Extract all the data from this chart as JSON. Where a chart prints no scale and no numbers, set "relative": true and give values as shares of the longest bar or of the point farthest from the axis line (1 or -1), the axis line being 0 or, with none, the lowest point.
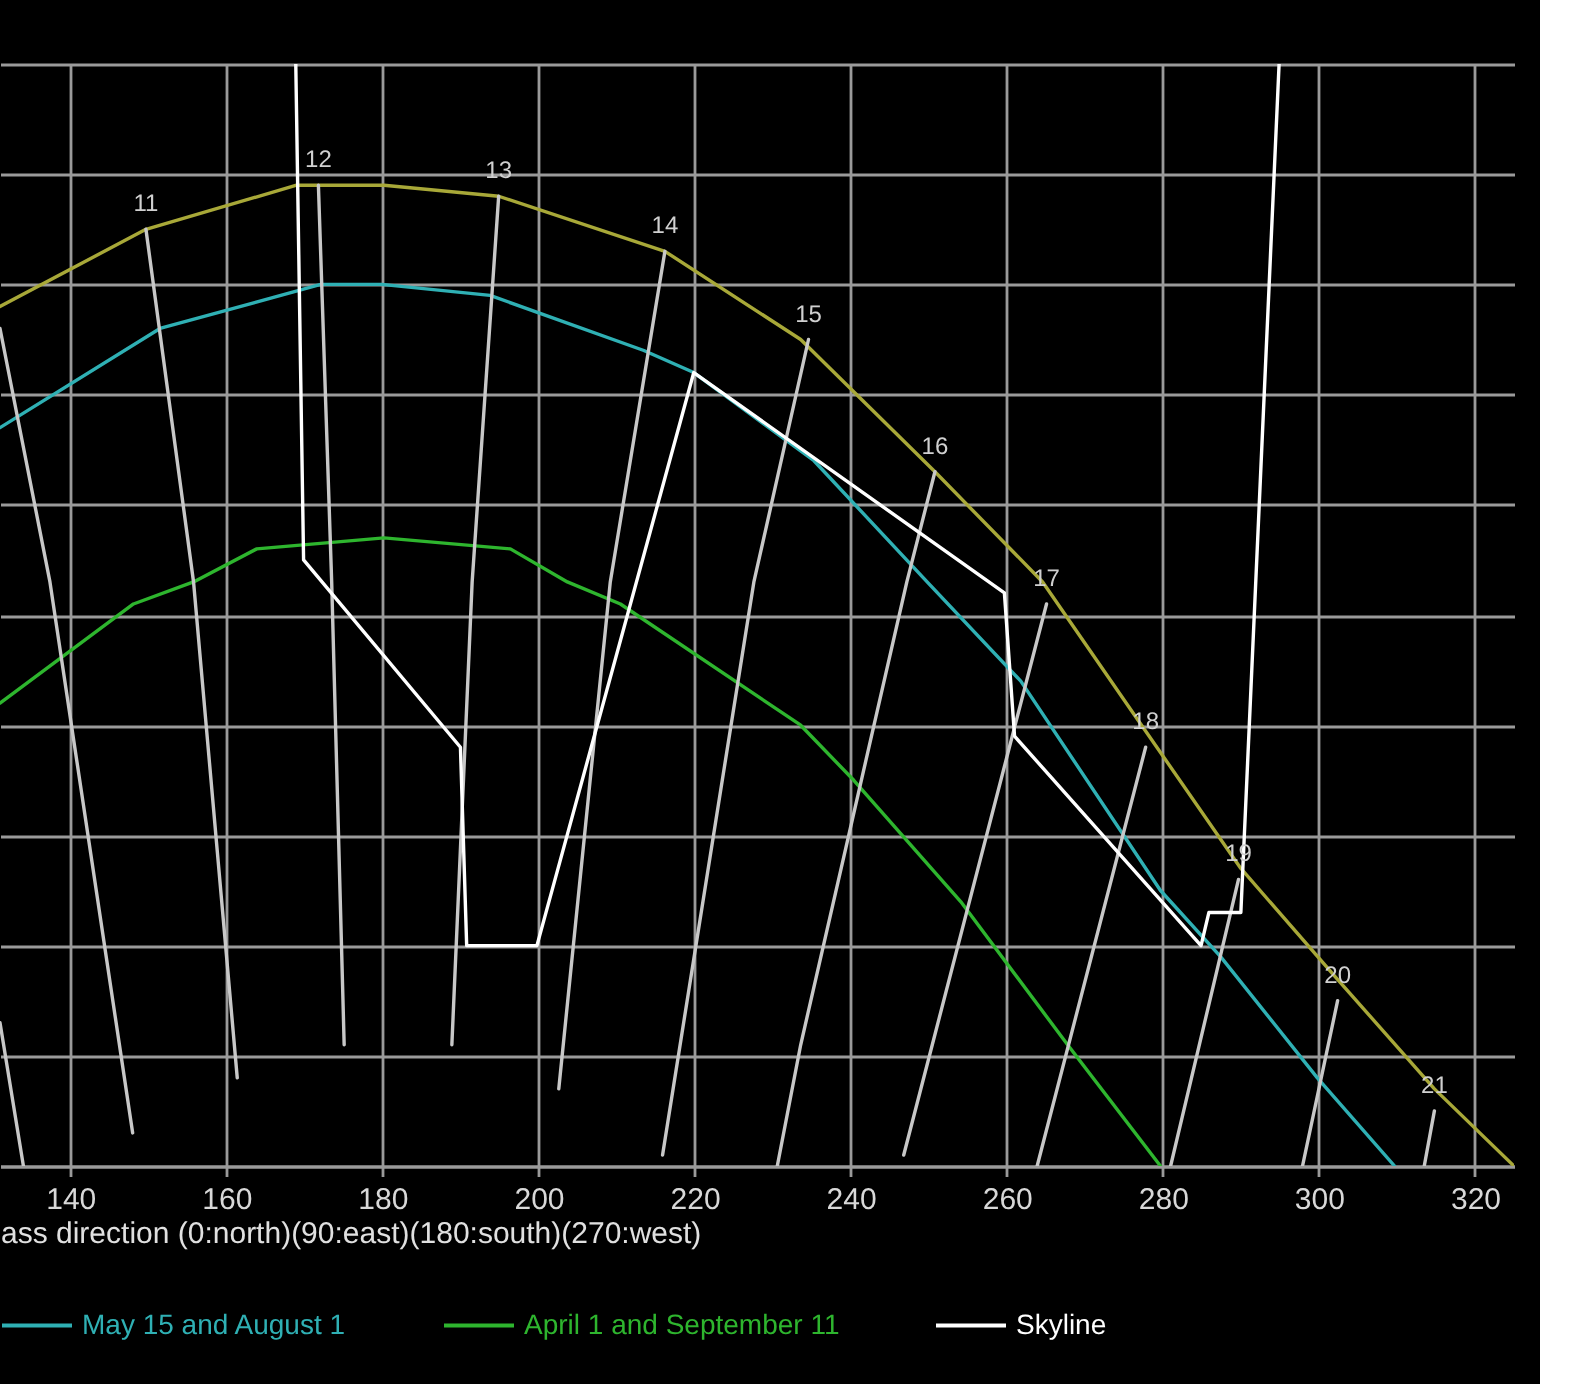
{
  "chart_data": {
    "type": "line",
    "relative": true,
    "xlabel": "ass direction (0:north)(90:east)(180:south)(270:west)",
    "xlim": [
      131,
      325
    ],
    "xticks": [
      140,
      160,
      180,
      200,
      220,
      240,
      260,
      280,
      300,
      320
    ],
    "grid": true,
    "legend": "bottom",
    "series": [
      {
        "color": "#a8a838",
        "x": [
          131.0,
          149.7,
          169.0,
          180.2,
          194.9,
          216.2,
          233.6,
          250.8,
          264.6,
          276.3,
          290.0,
          302.3,
          314.8,
          325.0
        ],
        "values": [
          0.78,
          0.85,
          0.89,
          0.89,
          0.88,
          0.83,
          0.75,
          0.63,
          0.53,
          0.41,
          0.27,
          0.17,
          0.07,
          0.0
        ]
      },
      {
        "name": "May 15 and August 1",
        "color": "#2fb0b4",
        "x": [
          131.0,
          151.5,
          172.1,
          179.9,
          193.8,
          213.5,
          219.9,
          235.3,
          249.8,
          261.8,
          279.7,
          287.4,
          299.8,
          309.7
        ],
        "values": [
          0.67,
          0.76,
          0.8,
          0.8,
          0.79,
          0.74,
          0.72,
          0.64,
          0.53,
          0.44,
          0.25,
          0.19,
          0.08,
          0.0
        ]
      },
      {
        "name": "April 1 and September 11",
        "color": "#2eb52e",
        "x": [
          131.0,
          148.1,
          155.8,
          163.9,
          180.2,
          196.4,
          203.7,
          210.5,
          233.6,
          240.4,
          254.1,
          267.8,
          279.7
        ],
        "values": [
          0.42,
          0.51,
          0.53,
          0.56,
          0.57,
          0.56,
          0.53,
          0.51,
          0.4,
          0.35,
          0.24,
          0.11,
          0.0
        ]
      },
      {
        "color": "#c8c8c8",
        "x": [
          131.0,
          134.0
        ],
        "values": [
          0.13,
          0.0
        ]
      },
      {
        "color": "#c8c8c8",
        "x": [
          131.0,
          137.4,
          148.0
        ],
        "values": [
          0.76,
          0.53,
          0.03
        ]
      },
      {
        "color": "#c8c8c8",
        "x": [
          149.7,
          155.8,
          161.4
        ],
        "values": [
          0.85,
          0.53,
          0.08
        ]
      },
      {
        "color": "#c8c8c8",
        "x": [
          171.8,
          173.5,
          175.1
        ],
        "values": [
          0.89,
          0.53,
          0.11
        ]
      },
      {
        "color": "#c8c8c8",
        "x": [
          194.9,
          191.5,
          188.9
        ],
        "values": [
          0.88,
          0.53,
          0.11
        ]
      },
      {
        "color": "#c8c8c8",
        "x": [
          216.2,
          209.2,
          202.6
        ],
        "values": [
          0.83,
          0.53,
          0.07
        ]
      },
      {
        "color": "#c8c8c8",
        "x": [
          234.6,
          227.6,
          215.9
        ],
        "values": [
          0.75,
          0.53,
          0.01
        ]
      },
      {
        "color": "#c8c8c8",
        "x": [
          250.8,
          247.2,
          233.6,
          230.6
        ],
        "values": [
          0.63,
          0.53,
          0.11,
          0.0
        ]
      },
      {
        "color": "#c8c8c8",
        "x": [
          265.1,
          246.8
        ],
        "values": [
          0.51,
          0.01
        ]
      },
      {
        "color": "#c8c8c8",
        "x": [
          277.8,
          263.9
        ],
        "values": [
          0.38,
          0.0
        ]
      },
      {
        "color": "#c8c8c8",
        "x": [
          289.7,
          281.0
        ],
        "values": [
          0.26,
          0.0
        ]
      },
      {
        "color": "#c8c8c8",
        "x": [
          302.4,
          297.9
        ],
        "values": [
          0.15,
          0.0
        ]
      },
      {
        "color": "#c8c8c8",
        "x": [
          314.8,
          313.5
        ],
        "values": [
          0.05,
          0.0
        ]
      },
      {
        "name": "Skyline",
        "color": "#ffffff",
        "x": [
          168.9,
          169.9,
          190.0,
          190.8,
          199.8,
          219.9,
          259.7,
          261.0,
          284.9,
          285.9,
          290.0,
          294.9
        ],
        "values": [
          1.0,
          0.55,
          0.38,
          0.2,
          0.2,
          0.72,
          0.52,
          0.39,
          0.2,
          0.23,
          0.23,
          1.0
        ]
      }
    ],
    "annotations": [
      {
        "text": "11",
        "x": 149.7,
        "y": 0.85
      },
      {
        "text": "12",
        "x": 171.8,
        "y": 0.89
      },
      {
        "text": "13",
        "x": 194.9,
        "y": 0.88
      },
      {
        "text": "14",
        "x": 216.2,
        "y": 0.83
      },
      {
        "text": "15",
        "x": 234.6,
        "y": 0.75
      },
      {
        "text": "16",
        "x": 250.8,
        "y": 0.63
      },
      {
        "text": "17",
        "x": 265.1,
        "y": 0.51
      },
      {
        "text": "18",
        "x": 277.8,
        "y": 0.38
      },
      {
        "text": "19",
        "x": 289.7,
        "y": 0.26
      },
      {
        "text": "20",
        "x": 302.4,
        "y": 0.15
      },
      {
        "text": "21",
        "x": 314.8,
        "y": 0.05
      }
    ]
  }
}
